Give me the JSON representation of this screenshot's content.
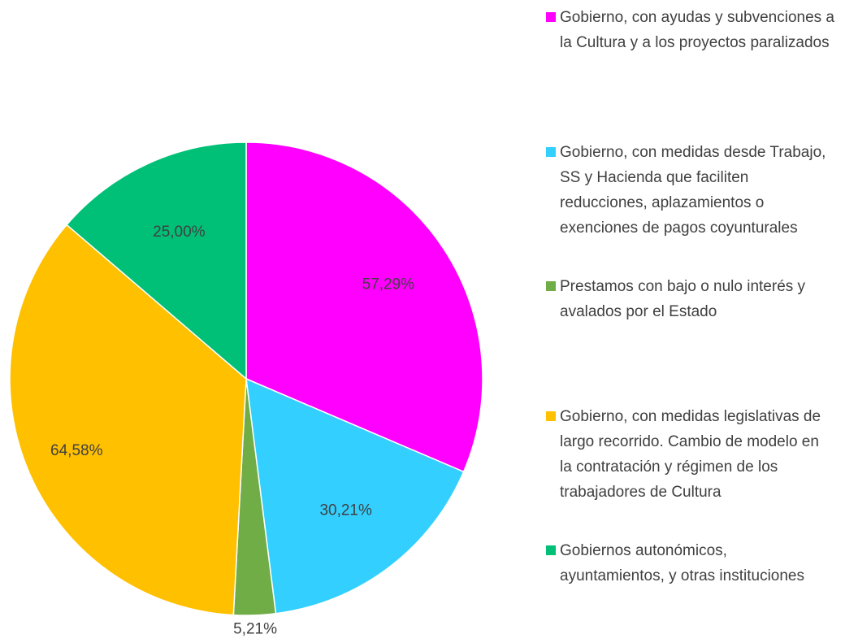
{
  "chart_data": {
    "type": "pie",
    "categories": [
      "Gobierno, con ayudas y subvenciones a la Cultura y a los proyectos paralizados",
      "Gobierno, con medidas desde Trabajo, SS y Hacienda que faciliten reducciones, aplazamientos o exenciones de pagos coyunturales",
      "Prestamos con bajo o nulo interés y avalados por el Estado",
      "Gobierno, con medidas legislativas de largo recorrido. Cambio de modelo en la contratación y régimen de los trabajadores de Cultura",
      "Gobiernos autonómicos, ayuntamientos, y otras instituciones"
    ],
    "values": [
      57.29,
      30.21,
      5.21,
      64.58,
      25.0
    ],
    "value_labels": [
      "57,29%",
      "30,21%",
      "5,21%",
      "64,58%",
      "25,00%"
    ],
    "colors": [
      "#ff00ff",
      "#33cfff",
      "#70ad47",
      "#ffc000",
      "#00c077"
    ],
    "legend": "right"
  }
}
